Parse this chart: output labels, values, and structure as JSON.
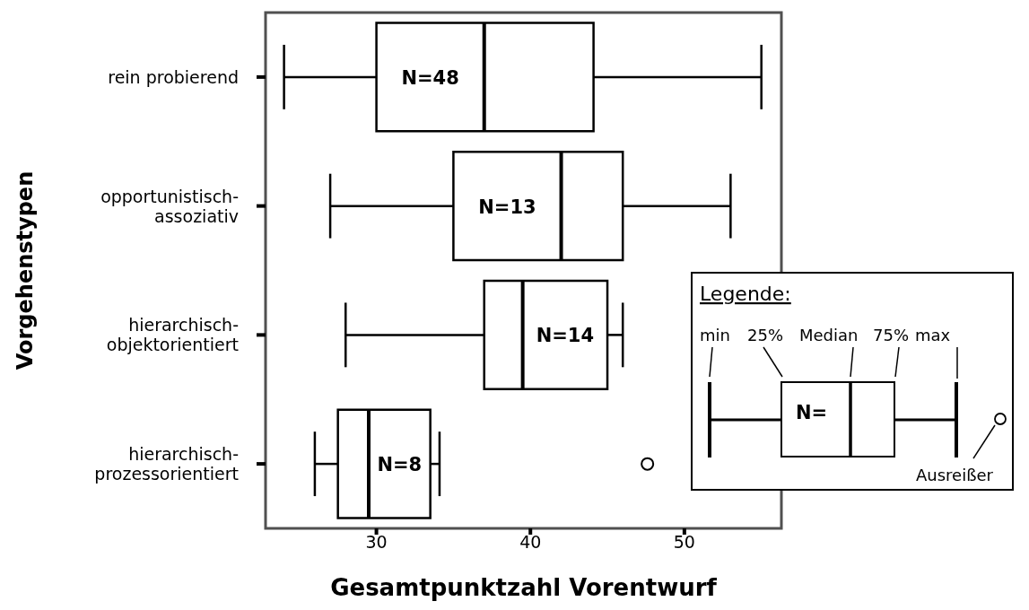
{
  "chart_data": {
    "type": "box",
    "orientation": "horizontal",
    "ylabel": "Vorgehenstypen",
    "xlabel": "Gesamtpunktzahl Vorentwurf",
    "categories": [
      "rein probierend",
      "opportunistisch-assoziativ",
      "hierarchisch-objektorientiert",
      "hierarchisch-prozessorientiert"
    ],
    "boxes": [
      {
        "low": 24,
        "q1": 30,
        "median": 37,
        "q3": 44.1,
        "high": 55
      },
      {
        "low": 27,
        "q1": 35,
        "median": 42,
        "q3": 46,
        "high": 53
      },
      {
        "low": 28,
        "q1": 37,
        "median": 39.5,
        "q3": 45,
        "high": 46
      },
      {
        "low": 26,
        "q1": 27.5,
        "median": 29.5,
        "q3": 33.5,
        "high": 34.1,
        "outliers": [
          47.6
        ]
      }
    ],
    "color": "#000000",
    "xlim": [
      22.8,
      56.3
    ],
    "xticks": [
      30,
      40,
      50
    ],
    "annotations": [
      "N=48",
      "N=13",
      "N=14",
      "N=8",
      "Legende:",
      "min",
      "25%",
      "Median",
      "75%",
      "max",
      "N=",
      "Ausreißer"
    ]
  }
}
